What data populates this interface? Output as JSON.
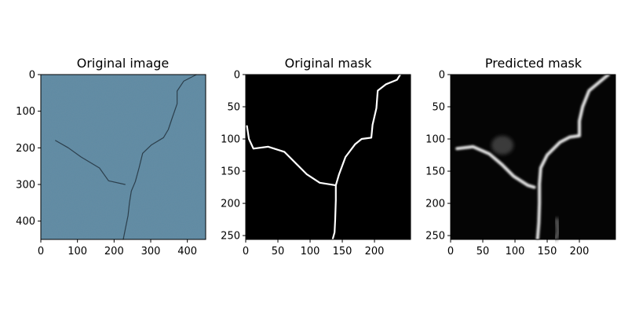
{
  "chart_data": [
    {
      "type": "image",
      "title": "Original image",
      "xlim": [
        0,
        450
      ],
      "ylim": [
        450,
        0
      ],
      "xticks": [
        0,
        100,
        200,
        300,
        400
      ],
      "yticks": [
        0,
        100,
        200,
        300,
        400
      ],
      "colors": {
        "background": "#5e8aa3",
        "crack": "#2c3f4c"
      },
      "crack_paths": [
        [
          [
            225,
            450
          ],
          [
            231,
            420
          ],
          [
            238,
            385
          ],
          [
            242,
            350
          ],
          [
            247,
            318
          ],
          [
            258,
            292
          ],
          [
            268,
            255
          ],
          [
            278,
            215
          ],
          [
            302,
            192
          ],
          [
            335,
            172
          ],
          [
            348,
            150
          ],
          [
            358,
            120
          ],
          [
            372,
            80
          ],
          [
            372,
            45
          ],
          [
            390,
            18
          ],
          [
            425,
            0
          ]
        ],
        [
          [
            40,
            180
          ],
          [
            75,
            200
          ],
          [
            110,
            225
          ],
          [
            160,
            255
          ],
          [
            185,
            290
          ],
          [
            230,
            300
          ]
        ]
      ]
    },
    {
      "type": "image",
      "title": "Original mask",
      "xlim": [
        0,
        256
      ],
      "ylim": [
        256,
        0
      ],
      "xticks": [
        0,
        50,
        100,
        150,
        200
      ],
      "yticks": [
        0,
        50,
        100,
        150,
        200,
        250
      ],
      "colors": {
        "background": "#000000",
        "crack": "#ffffff"
      },
      "crack_paths": [
        [
          [
            2,
            80
          ],
          [
            5,
            100
          ],
          [
            12,
            115
          ],
          [
            35,
            112
          ],
          [
            60,
            120
          ],
          [
            80,
            140
          ],
          [
            95,
            155
          ],
          [
            115,
            168
          ],
          [
            140,
            172
          ],
          [
            145,
            155
          ],
          [
            155,
            128
          ],
          [
            170,
            108
          ],
          [
            180,
            100
          ],
          [
            195,
            98
          ],
          [
            197,
            78
          ],
          [
            203,
            52
          ],
          [
            205,
            25
          ],
          [
            218,
            15
          ],
          [
            235,
            8
          ],
          [
            240,
            0
          ]
        ],
        [
          [
            140,
            172
          ],
          [
            140,
            195
          ],
          [
            139,
            225
          ],
          [
            138,
            245
          ],
          [
            135,
            256
          ]
        ]
      ]
    },
    {
      "type": "image",
      "title": "Predicted mask",
      "xlim": [
        0,
        256
      ],
      "ylim": [
        256,
        0
      ],
      "xticks": [
        0,
        50,
        100,
        150,
        200
      ],
      "yticks": [
        0,
        50,
        100,
        150,
        200,
        250
      ],
      "colors": {
        "background": "#000000",
        "crack": "#e6e6e6",
        "crack_faint": "#7a7a7a"
      },
      "crack_paths": [
        [
          [
            245,
            0
          ],
          [
            215,
            25
          ],
          [
            205,
            50
          ],
          [
            200,
            72
          ],
          [
            200,
            95
          ],
          [
            185,
            97
          ],
          [
            170,
            105
          ],
          [
            150,
            125
          ],
          [
            140,
            145
          ],
          [
            138,
            170
          ],
          [
            138,
            200
          ],
          [
            137,
            230
          ],
          [
            135,
            256
          ]
        ],
        [
          [
            10,
            115
          ],
          [
            35,
            112
          ],
          [
            60,
            123
          ],
          [
            80,
            140
          ],
          [
            98,
            158
          ],
          [
            120,
            172
          ],
          [
            130,
            175
          ]
        ]
      ],
      "faint_paths": [
        [
          [
            165,
            225
          ],
          [
            167,
            245
          ],
          [
            163,
            256
          ]
        ]
      ]
    }
  ]
}
